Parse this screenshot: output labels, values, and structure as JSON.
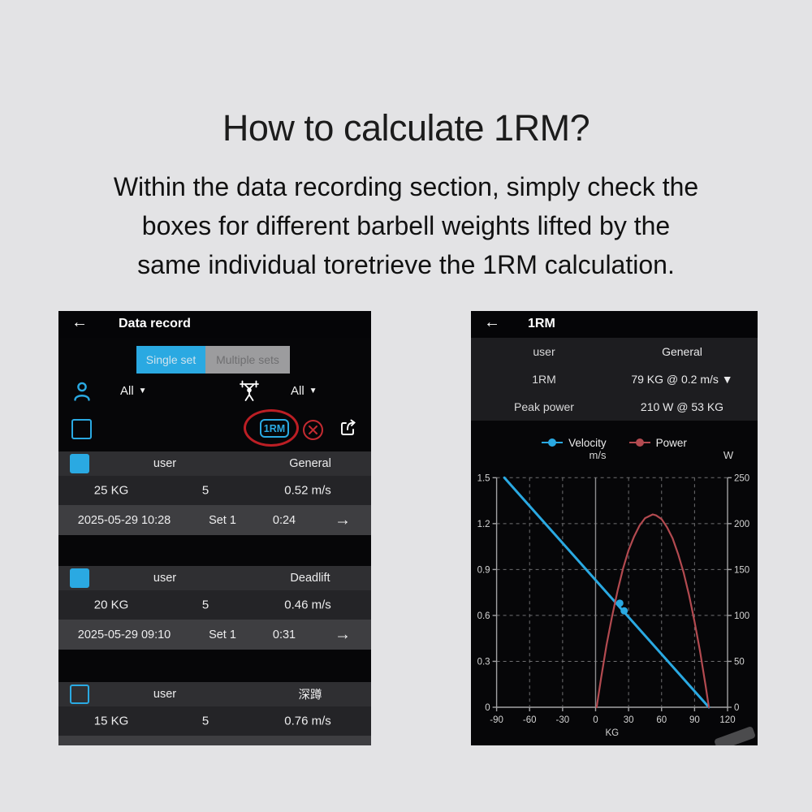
{
  "page": {
    "title": "How to calculate 1RM?",
    "subtitle_lines": [
      "Within the data recording section, simply check the",
      "boxes for different barbell weights lifted by the",
      "same individual toretrieve the 1RM calculation."
    ]
  },
  "colors": {
    "accent_blue": "#2aa9e2",
    "annotation_red": "#cc2127",
    "power_red": "#b34a50"
  },
  "data_record": {
    "back_icon": "←",
    "title": "Data record",
    "tabs": [
      {
        "label": "Single set",
        "active": true
      },
      {
        "label": "Multiple sets",
        "active": false
      }
    ],
    "user_filter": {
      "label": "All",
      "caret": "▼"
    },
    "exercise_filter": {
      "label": "All",
      "caret": "▼"
    },
    "toolbar": {
      "rm_button_label": "1RM"
    },
    "records": [
      {
        "checked": true,
        "user": "user",
        "exercise": "General",
        "weight": "25 KG",
        "reps": "5",
        "velocity": "0.52 m/s",
        "date": "2025-05-29 10:28",
        "set": "Set 1",
        "duration": "0:24",
        "arrow": "→"
      },
      {
        "checked": true,
        "user": "user",
        "exercise": "Deadlift",
        "weight": "20 KG",
        "reps": "5",
        "velocity": "0.46 m/s",
        "date": "2025-05-29 09:10",
        "set": "Set 1",
        "duration": "0:31",
        "arrow": "→"
      },
      {
        "checked": false,
        "user": "user",
        "exercise": "深蹲",
        "weight": "15 KG",
        "reps": "5",
        "velocity": "0.76 m/s"
      }
    ]
  },
  "onerm": {
    "back_icon": "←",
    "title": "1RM",
    "stats": [
      {
        "label": "user",
        "value": "General"
      },
      {
        "label": "1RM",
        "value": "79 KG @ 0.2 m/s ▼"
      },
      {
        "label": "Peak power",
        "value": "210 W @ 53 KG"
      }
    ]
  },
  "chart_data": {
    "type": "line",
    "xlabel": "KG",
    "x_range": [
      -90,
      120
    ],
    "x_ticks": [
      -90,
      -60,
      -30,
      0,
      30,
      60,
      90,
      120
    ],
    "left_axis": {
      "label": "m/s",
      "range": [
        0,
        1.5
      ],
      "ticks": [
        0,
        0.3,
        0.6,
        0.9,
        1.2,
        1.5
      ]
    },
    "right_axis": {
      "label": "W",
      "range": [
        0,
        250
      ],
      "ticks": [
        0,
        50,
        100,
        150,
        200,
        250
      ]
    },
    "grid": true,
    "legend_position": "top",
    "legend": [
      {
        "name": "Velocity",
        "color": "#2aa9e2"
      },
      {
        "name": "Power",
        "color": "#b34a50"
      }
    ],
    "series": [
      {
        "name": "Velocity",
        "axis": "left",
        "color": "#2aa9e2",
        "points": [
          [
            -83,
            1.5
          ],
          [
            103,
            0
          ]
        ],
        "markers": [
          [
            22,
            0.68
          ],
          [
            26,
            0.63
          ]
        ]
      },
      {
        "name": "Power",
        "axis": "right",
        "color": "#b34a50",
        "points": [
          [
            1,
            0
          ],
          [
            5,
            32
          ],
          [
            10,
            68
          ],
          [
            15,
            99
          ],
          [
            20,
            127
          ],
          [
            25,
            151
          ],
          [
            30,
            171
          ],
          [
            35,
            186
          ],
          [
            40,
            198
          ],
          [
            45,
            206
          ],
          [
            52,
            210
          ],
          [
            55,
            209
          ],
          [
            60,
            205
          ],
          [
            65,
            196
          ],
          [
            70,
            184
          ],
          [
            75,
            167
          ],
          [
            80,
            147
          ],
          [
            85,
            122
          ],
          [
            90,
            93
          ],
          [
            95,
            61
          ],
          [
            100,
            24
          ],
          [
            103,
            0
          ]
        ]
      }
    ]
  }
}
